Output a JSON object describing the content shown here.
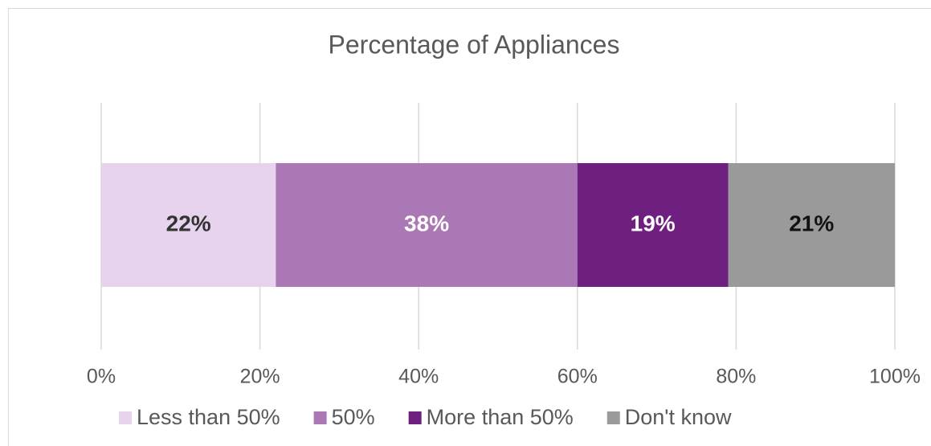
{
  "chart_data": {
    "type": "stacked-bar-horizontal",
    "title": "Percentage of Appliances",
    "categories": [
      null
    ],
    "series": [
      {
        "name": "Less than 50%",
        "color": "#e8d3ee",
        "label_color": "#333333",
        "values": [
          22
        ],
        "value_labels": [
          "22%"
        ]
      },
      {
        "name": "50%",
        "color": "#a978b5",
        "label_color": "#ffffff",
        "values": [
          38
        ],
        "value_labels": [
          "38%"
        ]
      },
      {
        "name": "More than 50%",
        "color": "#6f1f80",
        "label_color": "#ffffff",
        "values": [
          19
        ],
        "value_labels": [
          "19%"
        ]
      },
      {
        "name": "Don't know",
        "color": "#9a9a9a",
        "label_color": "#111111",
        "values": [
          21
        ],
        "value_labels": [
          "21%"
        ]
      }
    ],
    "xlim": [
      0,
      100
    ],
    "xticks": [
      {
        "value": 0,
        "label": "0%"
      },
      {
        "value": 20,
        "label": "20%"
      },
      {
        "value": 40,
        "label": "40%"
      },
      {
        "value": 60,
        "label": "60%"
      },
      {
        "value": 80,
        "label": "80%"
      },
      {
        "value": 100,
        "label": "100%"
      }
    ],
    "grid": true,
    "legend": "bottom"
  }
}
